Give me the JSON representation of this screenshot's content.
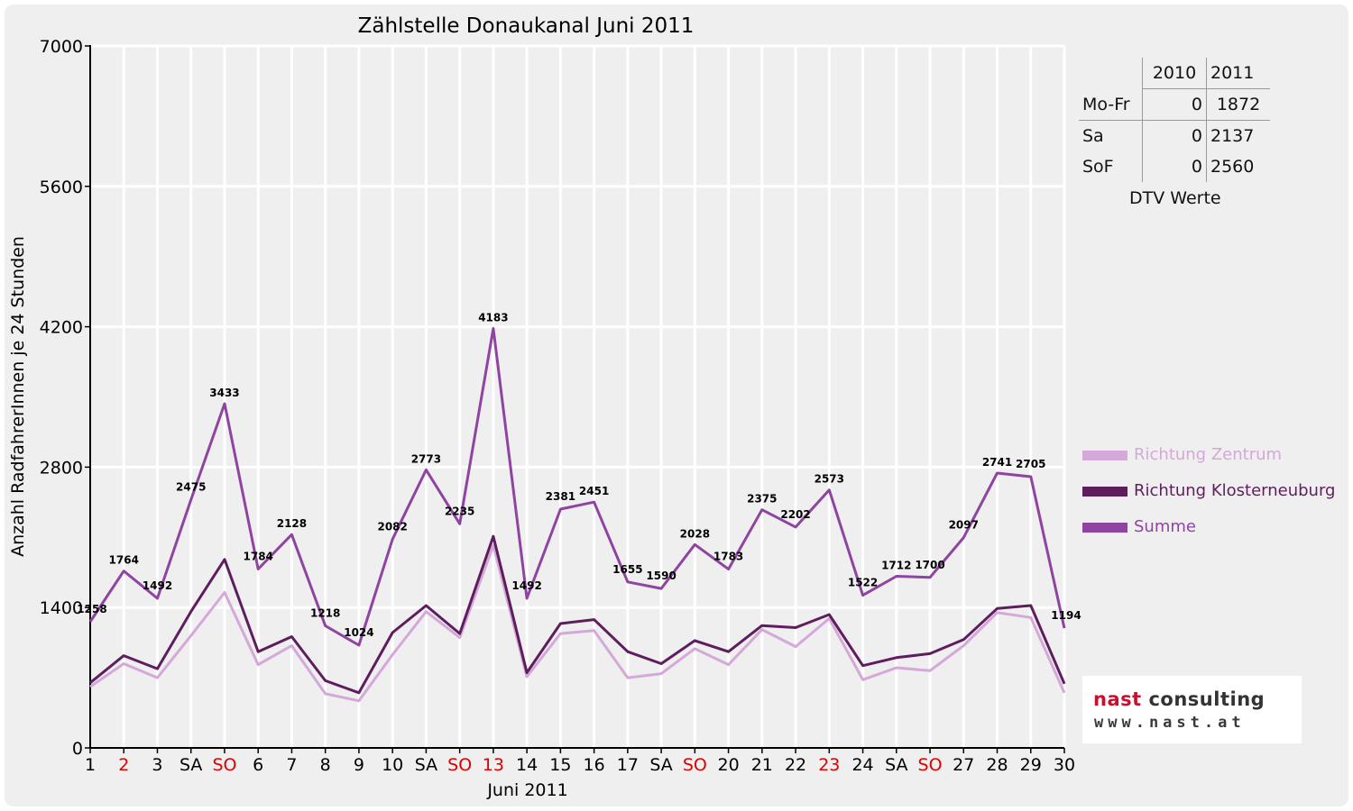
{
  "chart_data": {
    "type": "line",
    "title": "Zählstelle Donaukanal Juni 2011",
    "xlabel": "Juni 2011",
    "ylabel": "Anzahl RadfahrerInnen je 24 Stunden",
    "ylim": [
      0,
      7000
    ],
    "yticks": [
      0,
      1400,
      2800,
      4200,
      5600,
      7000
    ],
    "grid": true,
    "legend_position": "right",
    "x": [
      1,
      2,
      3,
      4,
      5,
      6,
      7,
      8,
      9,
      10,
      11,
      12,
      13,
      14,
      15,
      16,
      17,
      18,
      19,
      20,
      21,
      22,
      23,
      24,
      25,
      26,
      27,
      28,
      29,
      30
    ],
    "categories": [
      "1",
      "2",
      "3",
      "SA",
      "SO",
      "6",
      "7",
      "8",
      "9",
      "10",
      "SA",
      "SO",
      "13",
      "14",
      "15",
      "16",
      "17",
      "SA",
      "SO",
      "20",
      "21",
      "22",
      "23",
      "24",
      "SA",
      "SO",
      "27",
      "28",
      "29",
      "30"
    ],
    "category_is_holiday": [
      false,
      true,
      false,
      false,
      true,
      false,
      false,
      false,
      false,
      false,
      false,
      true,
      true,
      false,
      false,
      false,
      false,
      false,
      true,
      false,
      false,
      false,
      true,
      false,
      false,
      true,
      false,
      false,
      false,
      false
    ],
    "series": [
      {
        "name": "Richtung Zentrum",
        "color": "#d4a8d8",
        "values": [
          610,
          840,
          700,
          1120,
          1550,
          830,
          1020,
          540,
          470,
          930,
          1360,
          1100,
          2020,
          710,
          1140,
          1170,
          700,
          740,
          990,
          830,
          1180,
          1010,
          1290,
          680,
          800,
          770,
          1020,
          1350,
          1300,
          550
        ]
      },
      {
        "name": "Richtung Klosterneuburg",
        "color": "#5e1e5e",
        "values": [
          650,
          920,
          790,
          1360,
          1880,
          960,
          1110,
          670,
          550,
          1150,
          1420,
          1140,
          2110,
          750,
          1240,
          1280,
          960,
          840,
          1070,
          960,
          1220,
          1200,
          1330,
          820,
          900,
          940,
          1080,
          1390,
          1420,
          640
        ]
      },
      {
        "name": "Summe",
        "color": "#8e44a0",
        "values": [
          1258,
          1764,
          1492,
          2475,
          3433,
          1784,
          2128,
          1218,
          1024,
          2082,
          2773,
          2235,
          4183,
          1492,
          2381,
          2451,
          1655,
          1590,
          2028,
          1783,
          2375,
          2202,
          2573,
          1522,
          1712,
          1700,
          2097,
          2741,
          2705,
          1194
        ]
      }
    ],
    "data_labels": [
      "1258",
      "1764",
      "1492",
      "2475",
      "3433",
      "1784",
      "2128",
      "1218",
      "1024",
      "2082",
      "2773",
      "2235",
      "4183",
      "1492",
      "2381",
      "2451",
      "1655",
      "1590",
      "2028",
      "1783",
      "2375",
      "2202",
      "2573",
      "1522",
      "1712",
      "1700",
      "2097",
      "2741",
      "2705",
      "1194"
    ]
  },
  "stats_table": {
    "headers": [
      "",
      "2010",
      "2011"
    ],
    "rows": [
      {
        "label": "Mo-Fr",
        "v2010": "0",
        "v2011": "1872"
      },
      {
        "label": "Sa",
        "v2010": "0",
        "v2011": "2137"
      },
      {
        "label": "SoF",
        "v2010": "0",
        "v2011": "2560"
      }
    ],
    "caption": "DTV Werte"
  },
  "logo": {
    "name_part1": "nast",
    "name_part2": " consulting",
    "url": "www.nast.at",
    "color_part1": "#c8102e",
    "color_part2": "#333333"
  },
  "colors": {
    "holiday": "#e00000",
    "grid": "#ffffff",
    "axis": "#000000",
    "panel": "#efefef"
  }
}
